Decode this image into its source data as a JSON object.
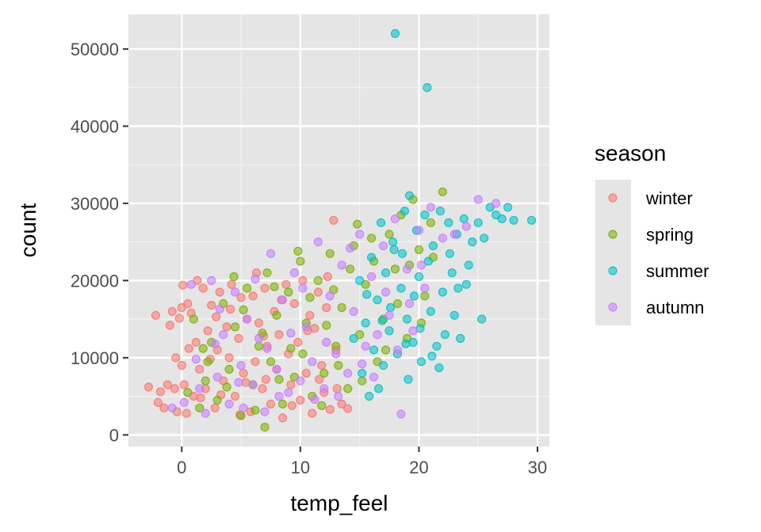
{
  "chart_data": {
    "type": "scatter",
    "title": "",
    "xlabel": "temp_feel",
    "ylabel": "count",
    "xlim": [
      -4.5,
      31
    ],
    "ylim": [
      -1500,
      54500
    ],
    "xticks": [
      0,
      10,
      20,
      30
    ],
    "yticks": [
      0,
      10000,
      20000,
      30000,
      40000,
      50000
    ],
    "xtick_labels": [
      "0",
      "10",
      "20",
      "30"
    ],
    "ytick_labels": [
      "0",
      "10000",
      "20000",
      "30000",
      "40000",
      "50000"
    ],
    "grid": true,
    "panel_background": "#e5e5e5",
    "point_opacity": 0.55,
    "legend": {
      "title": "season",
      "position": "right",
      "background": "#e5e5e5"
    },
    "series": [
      {
        "name": "winter",
        "color": "#f8766d",
        "points": [
          [
            -2.8,
            6200
          ],
          [
            -2.2,
            15500
          ],
          [
            -1.8,
            5600
          ],
          [
            -1.5,
            3500
          ],
          [
            -1.2,
            6500
          ],
          [
            -1.0,
            14200
          ],
          [
            -0.8,
            16000
          ],
          [
            -0.6,
            6000
          ],
          [
            -0.4,
            3000
          ],
          [
            -0.2,
            15100
          ],
          [
            0.0,
            9000
          ],
          [
            0.0,
            16500
          ],
          [
            0.2,
            6500
          ],
          [
            0.4,
            2800
          ],
          [
            0.5,
            17000
          ],
          [
            0.8,
            15800
          ],
          [
            1.0,
            5000
          ],
          [
            1.2,
            12000
          ],
          [
            1.5,
            8500
          ],
          [
            1.8,
            19000
          ],
          [
            2.0,
            6000
          ],
          [
            2.2,
            13500
          ],
          [
            2.5,
            16800
          ],
          [
            2.8,
            3500
          ],
          [
            3.0,
            11000
          ],
          [
            3.2,
            18500
          ],
          [
            3.5,
            7000
          ],
          [
            3.8,
            14000
          ],
          [
            4.0,
            10000
          ],
          [
            4.2,
            19500
          ],
          [
            4.5,
            5000
          ],
          [
            4.8,
            12500
          ],
          [
            5.0,
            17800
          ],
          [
            5.2,
            8000
          ],
          [
            5.5,
            15000
          ],
          [
            5.8,
            3000
          ],
          [
            6.0,
            18000
          ],
          [
            6.2,
            9500
          ],
          [
            6.5,
            14500
          ],
          [
            6.8,
            6000
          ],
          [
            7.0,
            19000
          ],
          [
            7.2,
            11500
          ],
          [
            7.5,
            4000
          ],
          [
            7.8,
            16000
          ],
          [
            8.0,
            8500
          ],
          [
            8.2,
            13000
          ],
          [
            8.5,
            2200
          ],
          [
            8.8,
            19500
          ],
          [
            9.0,
            10500
          ],
          [
            9.2,
            6500
          ],
          [
            9.5,
            17000
          ],
          [
            9.8,
            12000
          ],
          [
            10.0,
            4500
          ],
          [
            10.2,
            20000
          ],
          [
            10.5,
            8000
          ],
          [
            10.8,
            15500
          ],
          [
            11.0,
            2800
          ],
          [
            11.2,
            13800
          ],
          [
            11.5,
            18500
          ],
          [
            11.8,
            9000
          ],
          [
            12.0,
            5500
          ],
          [
            12.2,
            16500
          ],
          [
            12.5,
            3300
          ],
          [
            12.8,
            27800
          ],
          [
            13.0,
            11000
          ],
          [
            13.5,
            4000
          ],
          [
            -2.0,
            4200
          ],
          [
            -0.5,
            10000
          ],
          [
            0.6,
            11200
          ],
          [
            1.3,
            20000
          ],
          [
            1.6,
            4800
          ],
          [
            2.4,
            9800
          ],
          [
            3.3,
            5200
          ],
          [
            4.1,
            16300
          ],
          [
            5.4,
            6800
          ],
          [
            6.3,
            21000
          ],
          [
            7.1,
            7200
          ],
          [
            8.4,
            17500
          ],
          [
            9.3,
            3800
          ],
          [
            10.6,
            13500
          ],
          [
            11.6,
            7200
          ],
          [
            12.3,
            20500
          ],
          [
            13.1,
            6000
          ],
          [
            14.0,
            3400
          ],
          [
            0.1,
            19400
          ],
          [
            2.9,
            15300
          ],
          [
            4.9,
            2600
          ],
          [
            6.9,
            12800
          ]
        ]
      },
      {
        "name": "spring",
        "color": "#7cae00",
        "points": [
          [
            0.5,
            5500
          ],
          [
            1.0,
            15000
          ],
          [
            1.5,
            3500
          ],
          [
            2.0,
            7000
          ],
          [
            2.5,
            12000
          ],
          [
            3.0,
            4500
          ],
          [
            3.5,
            17000
          ],
          [
            4.0,
            8500
          ],
          [
            4.5,
            14000
          ],
          [
            5.0,
            2500
          ],
          [
            5.5,
            19000
          ],
          [
            6.0,
            6500
          ],
          [
            6.5,
            11500
          ],
          [
            7.0,
            1000
          ],
          [
            7.2,
            21000
          ],
          [
            7.5,
            9500
          ],
          [
            8.0,
            15500
          ],
          [
            8.5,
            4000
          ],
          [
            9.0,
            18500
          ],
          [
            9.5,
            7500
          ],
          [
            10.0,
            22500
          ],
          [
            10.2,
            10500
          ],
          [
            10.5,
            14500
          ],
          [
            11.0,
            5000
          ],
          [
            11.5,
            20000
          ],
          [
            12.0,
            8000
          ],
          [
            12.5,
            23500
          ],
          [
            13.0,
            11500
          ],
          [
            13.5,
            16500
          ],
          [
            14.0,
            6000
          ],
          [
            14.5,
            24500
          ],
          [
            15.0,
            13000
          ],
          [
            15.5,
            19500
          ],
          [
            16.0,
            25500
          ],
          [
            16.5,
            9500
          ],
          [
            17.0,
            15000
          ],
          [
            17.5,
            26000
          ],
          [
            18.0,
            21500
          ],
          [
            18.5,
            28500
          ],
          [
            19.0,
            12500
          ],
          [
            19.5,
            30500
          ],
          [
            20.0,
            24000
          ],
          [
            20.5,
            18000
          ],
          [
            21.0,
            27500
          ],
          [
            22.0,
            31500
          ],
          [
            2.2,
            9500
          ],
          [
            3.8,
            6200
          ],
          [
            5.2,
            16200
          ],
          [
            6.2,
            3200
          ],
          [
            6.8,
            13200
          ],
          [
            8.2,
            7200
          ],
          [
            9.2,
            11200
          ],
          [
            10.8,
            17800
          ],
          [
            11.8,
            3800
          ],
          [
            12.2,
            14200
          ],
          [
            13.2,
            9000
          ],
          [
            14.2,
            21500
          ],
          [
            15.2,
            7000
          ],
          [
            16.2,
            22500
          ],
          [
            17.2,
            11000
          ],
          [
            18.2,
            17000
          ],
          [
            19.2,
            22000
          ],
          [
            20.2,
            14500
          ],
          [
            21.2,
            23000
          ],
          [
            1.8,
            11200
          ],
          [
            4.4,
            20500
          ],
          [
            7.8,
            19200
          ],
          [
            9.8,
            23800
          ],
          [
            12.8,
            18800
          ],
          [
            14.8,
            27300
          ]
        ]
      },
      {
        "name": "summer",
        "color": "#00bfc4",
        "points": [
          [
            14.5,
            12500
          ],
          [
            15.0,
            20000
          ],
          [
            15.2,
            8000
          ],
          [
            15.5,
            14500
          ],
          [
            15.8,
            5000
          ],
          [
            16.0,
            23000
          ],
          [
            16.2,
            11000
          ],
          [
            16.5,
            17500
          ],
          [
            16.8,
            27500
          ],
          [
            17.0,
            9000
          ],
          [
            17.2,
            21000
          ],
          [
            17.5,
            13500
          ],
          [
            17.8,
            25000
          ],
          [
            18.0,
            52000
          ],
          [
            18.2,
            10500
          ],
          [
            18.5,
            19000
          ],
          [
            18.8,
            29000
          ],
          [
            19.0,
            15000
          ],
          [
            19.2,
            31000
          ],
          [
            19.5,
            12000
          ],
          [
            19.8,
            26500
          ],
          [
            20.0,
            20500
          ],
          [
            20.2,
            9500
          ],
          [
            20.5,
            28500
          ],
          [
            20.7,
            45000
          ],
          [
            21.0,
            16000
          ],
          [
            21.2,
            24500
          ],
          [
            21.5,
            11500
          ],
          [
            21.8,
            29000
          ],
          [
            22.0,
            18500
          ],
          [
            22.2,
            13000
          ],
          [
            22.5,
            27500
          ],
          [
            22.8,
            21000
          ],
          [
            23.0,
            15500
          ],
          [
            23.2,
            26000
          ],
          [
            23.5,
            12500
          ],
          [
            23.8,
            28000
          ],
          [
            24.0,
            19500
          ],
          [
            24.5,
            25000
          ],
          [
            25.0,
            27500
          ],
          [
            25.3,
            15000
          ],
          [
            25.5,
            25500
          ],
          [
            26.0,
            29500
          ],
          [
            26.5,
            28500
          ],
          [
            27.0,
            28000
          ],
          [
            27.5,
            29500
          ],
          [
            28.0,
            27800
          ],
          [
            29.5,
            27800
          ],
          [
            21.7,
            8700
          ],
          [
            16.6,
            6000
          ],
          [
            18.6,
            23500
          ],
          [
            19.6,
            18000
          ],
          [
            20.8,
            22500
          ],
          [
            17.6,
            16500
          ],
          [
            15.6,
            18200
          ],
          [
            22.6,
            23500
          ],
          [
            24.2,
            22000
          ],
          [
            19.1,
            7200
          ],
          [
            20.1,
            13800
          ],
          [
            21.1,
            10200
          ],
          [
            16.9,
            14800
          ],
          [
            17.9,
            24000
          ],
          [
            18.9,
            11800
          ],
          [
            23.3,
            19000
          ]
        ]
      },
      {
        "name": "autumn",
        "color": "#c77cff",
        "points": [
          [
            -0.8,
            3500
          ],
          [
            0.2,
            4200
          ],
          [
            0.8,
            19500
          ],
          [
            1.5,
            6000
          ],
          [
            2.0,
            2800
          ],
          [
            2.5,
            20000
          ],
          [
            3.0,
            7500
          ],
          [
            3.5,
            13000
          ],
          [
            4.0,
            4000
          ],
          [
            4.5,
            18500
          ],
          [
            5.0,
            9000
          ],
          [
            5.5,
            15000
          ],
          [
            6.0,
            6500
          ],
          [
            6.5,
            12500
          ],
          [
            7.0,
            3000
          ],
          [
            7.5,
            23500
          ],
          [
            8.0,
            8500
          ],
          [
            8.5,
            17500
          ],
          [
            9.0,
            5500
          ],
          [
            9.5,
            21000
          ],
          [
            10.0,
            7000
          ],
          [
            10.5,
            14000
          ],
          [
            11.0,
            9500
          ],
          [
            11.5,
            25000
          ],
          [
            12.0,
            6000
          ],
          [
            12.5,
            18000
          ],
          [
            13.0,
            10500
          ],
          [
            13.5,
            22000
          ],
          [
            14.0,
            8000
          ],
          [
            14.5,
            16000
          ],
          [
            15.0,
            26000
          ],
          [
            15.5,
            11500
          ],
          [
            16.0,
            20500
          ],
          [
            16.5,
            13000
          ],
          [
            17.0,
            24500
          ],
          [
            17.5,
            15500
          ],
          [
            18.0,
            28000
          ],
          [
            18.5,
            2700
          ],
          [
            19.0,
            21500
          ],
          [
            19.5,
            13500
          ],
          [
            20.0,
            26500
          ],
          [
            20.5,
            19000
          ],
          [
            21.0,
            29500
          ],
          [
            22.0,
            25500
          ],
          [
            23.0,
            26000
          ],
          [
            24.0,
            27000
          ],
          [
            25.0,
            30500
          ],
          [
            26.5,
            30000
          ],
          [
            1.2,
            9800
          ],
          [
            3.2,
            16300
          ],
          [
            5.2,
            3500
          ],
          [
            6.2,
            20200
          ],
          [
            7.2,
            11200
          ],
          [
            8.2,
            5000
          ],
          [
            9.2,
            13200
          ],
          [
            10.2,
            19000
          ],
          [
            11.2,
            4600
          ],
          [
            12.2,
            12000
          ],
          [
            13.2,
            5000
          ],
          [
            14.2,
            24200
          ],
          [
            15.2,
            9200
          ],
          [
            16.2,
            7500
          ],
          [
            17.2,
            18500
          ],
          [
            18.2,
            11000
          ],
          [
            19.2,
            17000
          ],
          [
            20.2,
            22000
          ],
          [
            2.8,
            11800
          ],
          [
            4.8,
            6800
          ]
        ]
      }
    ]
  }
}
